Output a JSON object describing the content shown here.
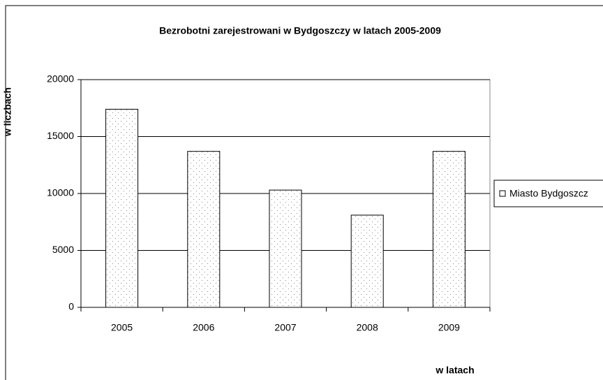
{
  "chart_data": {
    "type": "bar",
    "title": "Bezrobotni zarejestrowani w Bydgoszczy w latach 2005-2009",
    "x_label": "w latach",
    "y_label": "w liczbach",
    "categories": [
      "2005",
      "2006",
      "2007",
      "2008",
      "2009"
    ],
    "series": [
      {
        "name": "Miasto Bydgoszcz",
        "color": "#ffffff",
        "values": [
          17400,
          13700,
          10300,
          8100,
          13700
        ]
      }
    ],
    "ylim": [
      0,
      20000
    ],
    "yticks": [
      0,
      5000,
      10000,
      15000,
      20000
    ],
    "grid": true,
    "legend": "right"
  }
}
